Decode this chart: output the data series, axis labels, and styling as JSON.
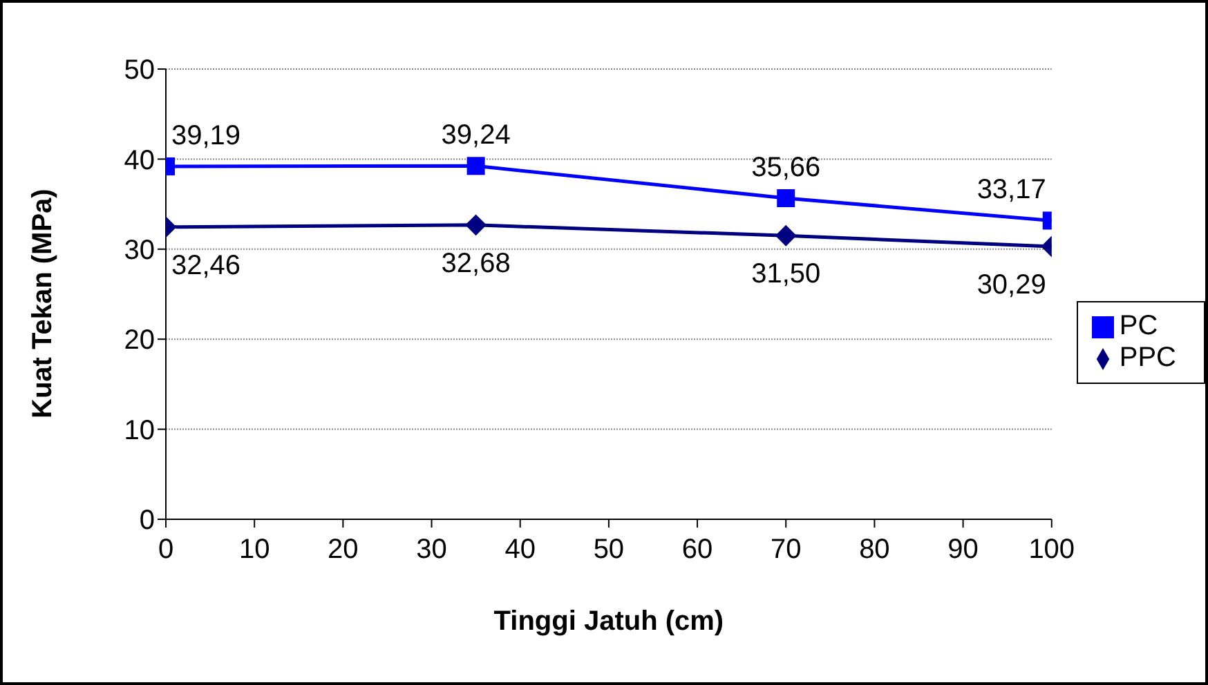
{
  "chart_data": {
    "type": "line",
    "xlabel": "Tinggi Jatuh (cm)",
    "ylabel": "Kuat Tekan (MPa)",
    "x": [
      0,
      35,
      70,
      100
    ],
    "series": [
      {
        "name": "PPC",
        "color": "#000080",
        "marker": "diamond",
        "values": [
          32.46,
          32.68,
          31.5,
          30.29
        ],
        "value_labels": [
          "32,46",
          "32,68",
          "31,50",
          "30,29"
        ]
      },
      {
        "name": "PC",
        "color": "#0000ff",
        "marker": "square",
        "values": [
          39.19,
          39.24,
          35.66,
          33.17
        ],
        "value_labels": [
          "39,19",
          "39,24",
          "35,66",
          "33,17"
        ]
      }
    ],
    "xlim": [
      0,
      100
    ],
    "xticks": [
      0,
      10,
      20,
      30,
      40,
      50,
      60,
      70,
      80,
      90,
      100
    ],
    "ylim": [
      0,
      50
    ],
    "yticks": [
      0,
      10,
      20,
      30,
      40,
      50
    ],
    "grid": "y",
    "legend": "right"
  }
}
